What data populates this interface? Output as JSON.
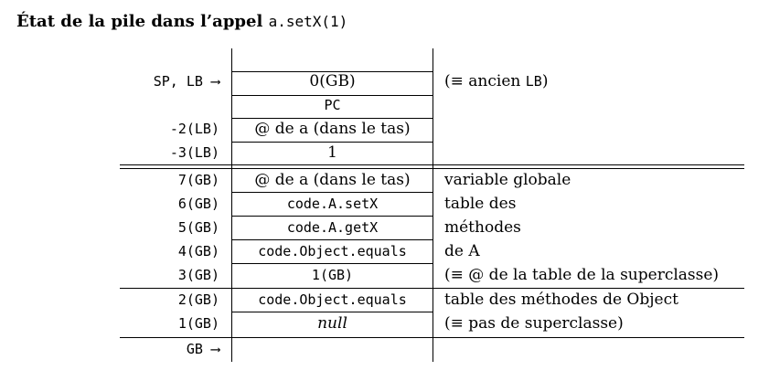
{
  "title": {
    "text": "État de la pile dans l’appel ",
    "code": "a.setX(1)"
  },
  "rows": [
    {
      "label": "",
      "cell": "",
      "note": ""
    },
    {
      "label": "SP, LB ⟶",
      "cell": "0(GB)",
      "note_prefix": "(≡ ancien ",
      "note_code": "LB",
      "note_suffix": ")"
    },
    {
      "label": "",
      "cell": "PC",
      "note": ""
    },
    {
      "label": "-2(LB)",
      "cell": "@ de a (dans le tas)",
      "note": ""
    },
    {
      "label": "-3(LB)",
      "cell": "1",
      "note": ""
    },
    {
      "label": "7(GB)",
      "cell": "@ de a (dans le tas)",
      "note": "variable globale"
    },
    {
      "label": "6(GB)",
      "cell": "code.A.setX",
      "note": "table des"
    },
    {
      "label": "5(GB)",
      "cell": "code.A.getX",
      "note": "méthodes"
    },
    {
      "label": "4(GB)",
      "cell": "code.Object.equals",
      "note": "de A"
    },
    {
      "label": "3(GB)",
      "cell": "1(GB)",
      "note": "(≡ @ de la table de la superclasse)"
    },
    {
      "label": "2(GB)",
      "cell": "code.Object.equals",
      "note": "table des méthodes de Object"
    },
    {
      "label": "1(GB)",
      "cell": "null",
      "note": "(≡ pas de superclasse)"
    },
    {
      "label": "GB ⟶",
      "cell": "",
      "note": ""
    }
  ]
}
